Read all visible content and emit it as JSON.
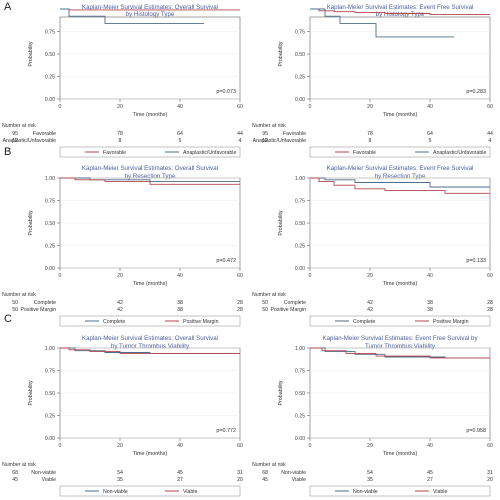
{
  "panel_letters": [
    "A",
    "B",
    "C"
  ],
  "number_at_risk_label": "Number at risk",
  "chart_data": [
    {
      "type": "line",
      "panel": "A",
      "step": true,
      "title": [
        "Kaplan-Meier Survival Estimates: Overall Survival",
        "by Histology Type"
      ],
      "xlabel": "Time (months)",
      "ylabel": "Probability",
      "xlim": [
        0,
        60
      ],
      "ylim": [
        0,
        1
      ],
      "xticks": [
        "0",
        "20",
        "40",
        "60"
      ],
      "yticks": [
        "0.00",
        "0.25",
        "0.50",
        "0.75",
        "1.00"
      ],
      "pvalue": "p=0.073",
      "series": [
        {
          "name": "Favorable",
          "color": "#b5454b",
          "x": [
            0,
            3,
            60
          ],
          "y": [
            1.0,
            0.99,
            0.99
          ]
        },
        {
          "name": "Anaplastic/Unfavorable",
          "color": "#4c6e8a",
          "x": [
            0,
            3,
            15,
            48
          ],
          "y": [
            1.0,
            0.92,
            0.84,
            0.84
          ]
        }
      ],
      "risk_table": {
        "times": [
          0,
          20,
          40,
          60
        ],
        "rows": [
          {
            "label": "Favorable",
            "values": [
              "95",
              "78",
              "64",
              "44"
            ]
          },
          {
            "label": "Anaplastic/Unfavorable",
            "values": [
              "12",
              "8",
              "5",
              "4"
            ]
          }
        ]
      },
      "legend": [
        "Favorable",
        "Anaplastic/Unfavorable"
      ]
    },
    {
      "type": "line",
      "panel": "A",
      "step": true,
      "title": [
        "Kaplan-Meier Survival Estimates: Event Free Survival",
        "by Histology Type"
      ],
      "xlabel": "Time (months)",
      "ylabel": "Probability",
      "xlim": [
        0,
        60
      ],
      "ylim": [
        0,
        1
      ],
      "xticks": [
        "0",
        "20",
        "40",
        "60"
      ],
      "yticks": [
        "0.00",
        "0.25",
        "0.50",
        "0.75",
        "1.00"
      ],
      "pvalue": "p=0.283",
      "series": [
        {
          "name": "Favorable",
          "color": "#b5454b",
          "x": [
            0,
            3,
            8,
            15,
            25,
            40,
            60
          ],
          "y": [
            1.0,
            0.98,
            0.97,
            0.96,
            0.95,
            0.94,
            0.94
          ]
        },
        {
          "name": "Anaplastic/Unfavorable",
          "color": "#4c6e8a",
          "x": [
            0,
            5,
            10,
            22,
            48
          ],
          "y": [
            1.0,
            0.92,
            0.84,
            0.69,
            0.69
          ]
        }
      ],
      "risk_table": {
        "times": [
          0,
          20,
          40,
          60
        ],
        "rows": [
          {
            "label": "Favorable",
            "values": [
              "95",
              "78",
              "64",
              "44"
            ]
          },
          {
            "label": "Anaplastic/Unfavorable",
            "values": [
              "12",
              "8",
              "5",
              "4"
            ]
          }
        ]
      },
      "legend": [
        "Favorable",
        "Anaplastic/Unfavorable"
      ]
    },
    {
      "type": "line",
      "panel": "B",
      "step": true,
      "title": [
        "Kaplan-Meier Survival Estimates: Overall Survival",
        "by Resection Type"
      ],
      "xlabel": "Time (months)",
      "ylabel": "Probability",
      "xlim": [
        0,
        60
      ],
      "ylim": [
        0,
        1
      ],
      "xticks": [
        "0",
        "20",
        "40",
        "60"
      ],
      "yticks": [
        "0.00",
        "0.25",
        "0.50",
        "0.75",
        "1.00"
      ],
      "pvalue": "p=0.472",
      "series": [
        {
          "name": "Complete",
          "color": "#4c6e8a",
          "x": [
            0,
            10,
            30,
            60
          ],
          "y": [
            1.0,
            0.98,
            0.96,
            0.96
          ]
        },
        {
          "name": "Positive Margin",
          "color": "#b5454b",
          "x": [
            0,
            5,
            15,
            30,
            60
          ],
          "y": [
            1.0,
            0.98,
            0.96,
            0.93,
            0.93
          ]
        }
      ],
      "risk_table": {
        "times": [
          0,
          20,
          40,
          60
        ],
        "rows": [
          {
            "label": "Complete",
            "values": [
              "50",
              "42",
              "38",
              "28"
            ]
          },
          {
            "label": "Positive Margin",
            "values": [
              "50",
              "42",
              "38",
              "28"
            ]
          }
        ]
      },
      "legend": [
        "Complete",
        "Positive Margin"
      ]
    },
    {
      "type": "line",
      "panel": "B",
      "step": true,
      "title": [
        "Kaplan-Meier Survival Estimates: Event Free Survival",
        "by Resection Type"
      ],
      "xlabel": "Time (months)",
      "ylabel": "Probability",
      "xlim": [
        0,
        60
      ],
      "ylim": [
        0,
        1
      ],
      "xticks": [
        "0",
        "20",
        "40",
        "60"
      ],
      "yticks": [
        "0.00",
        "0.25",
        "0.50",
        "0.75",
        "1.00"
      ],
      "pvalue": "p=0.133",
      "series": [
        {
          "name": "Complete",
          "color": "#4c6e8a",
          "x": [
            0,
            5,
            15,
            40,
            60
          ],
          "y": [
            1.0,
            0.98,
            0.95,
            0.9,
            0.9
          ]
        },
        {
          "name": "Positive Margin",
          "color": "#b5454b",
          "x": [
            0,
            3,
            8,
            15,
            25,
            45,
            60
          ],
          "y": [
            1.0,
            0.96,
            0.92,
            0.88,
            0.86,
            0.83,
            0.83
          ]
        }
      ],
      "risk_table": {
        "times": [
          0,
          20,
          40,
          60
        ],
        "rows": [
          {
            "label": "Complete",
            "values": [
              "50",
              "42",
              "38",
              "28"
            ]
          },
          {
            "label": "Positive Margin",
            "values": [
              "50",
              "42",
              "38",
              "28"
            ]
          }
        ]
      },
      "legend": [
        "Complete",
        "Positive Margin"
      ]
    },
    {
      "type": "line",
      "panel": "C",
      "step": true,
      "title": [
        "Kaplan-Meier Survival Estimates: Overall Survival",
        "by Tumor Thrombus Viability"
      ],
      "xlabel": "Time (months)",
      "ylabel": "Probability",
      "xlim": [
        0,
        60
      ],
      "ylim": [
        0,
        1
      ],
      "xticks": [
        "0",
        "20",
        "40",
        "60"
      ],
      "yticks": [
        "0.00",
        "0.25",
        "0.50",
        "0.75",
        "1.00"
      ],
      "pvalue": "p=0.772",
      "series": [
        {
          "name": "Non-viable",
          "color": "#4c6e8a",
          "x": [
            0,
            5,
            15,
            30,
            60
          ],
          "y": [
            1.0,
            0.97,
            0.95,
            0.94,
            0.94
          ]
        },
        {
          "name": "Viable",
          "color": "#b5454b",
          "x": [
            0,
            3,
            10,
            20,
            60
          ],
          "y": [
            1.0,
            0.98,
            0.96,
            0.94,
            0.94
          ]
        }
      ],
      "risk_table": {
        "times": [
          0,
          20,
          40,
          60
        ],
        "rows": [
          {
            "label": "Non-viable",
            "values": [
              "68",
              "54",
              "45",
              "31"
            ]
          },
          {
            "label": "Viable",
            "values": [
              "45",
              "35",
              "27",
              "20"
            ]
          }
        ]
      },
      "legend": [
        "Non-viable",
        "Viable"
      ]
    },
    {
      "type": "line",
      "panel": "C",
      "step": true,
      "title": [
        "Kaplan-Meier Survival Estimates: Event Free Survival by",
        "Tumor Thrombus Viability"
      ],
      "xlabel": "Time (months)",
      "ylabel": "Probability",
      "xlim": [
        0,
        60
      ],
      "ylim": [
        0,
        1
      ],
      "xticks": [
        "0",
        "20",
        "40",
        "60"
      ],
      "yticks": [
        "0.00",
        "0.25",
        "0.50",
        "0.75",
        "1.00"
      ],
      "pvalue": "p=0.958",
      "series": [
        {
          "name": "Non-viable",
          "color": "#4c6e8a",
          "x": [
            0,
            5,
            15,
            25,
            45,
            60
          ],
          "y": [
            1.0,
            0.96,
            0.93,
            0.9,
            0.89,
            0.89
          ]
        },
        {
          "name": "Viable",
          "color": "#b5454b",
          "x": [
            0,
            4,
            12,
            22,
            40,
            60
          ],
          "y": [
            1.0,
            0.97,
            0.94,
            0.91,
            0.89,
            0.89
          ]
        }
      ],
      "risk_table": {
        "times": [
          0,
          20,
          40,
          60
        ],
        "rows": [
          {
            "label": "Non-viable",
            "values": [
              "68",
              "54",
              "45",
              "31"
            ]
          },
          {
            "label": "Viable",
            "values": [
              "45",
              "35",
              "27",
              "20"
            ]
          }
        ]
      },
      "legend": [
        "Non-viable",
        "Viable"
      ]
    }
  ]
}
